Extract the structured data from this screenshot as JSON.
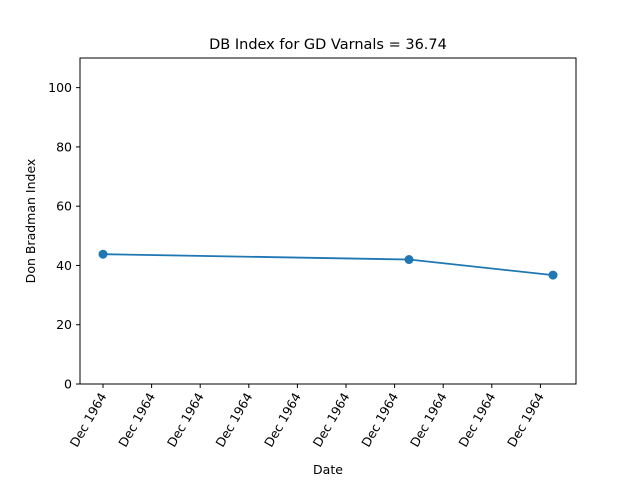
{
  "chart_data": {
    "type": "line",
    "title": "DB Index for GD Varnals = 36.74",
    "xlabel": "Date",
    "ylabel": "Don Bradman Index",
    "ylim": [
      0,
      110
    ],
    "yticks": [
      0,
      20,
      40,
      60,
      80,
      100
    ],
    "xtick_labels": [
      "Dec 1964",
      "Dec 1964",
      "Dec 1964",
      "Dec 1964",
      "Dec 1964",
      "Dec 1964",
      "Dec 1964",
      "Dec 1964",
      "Dec 1964",
      "Dec 1964"
    ],
    "grid": false,
    "series": [
      {
        "color": "#1f77b4",
        "points": [
          {
            "y": 43.8
          },
          {
            "y": 42.0
          },
          {
            "y": 36.74
          }
        ]
      }
    ]
  }
}
